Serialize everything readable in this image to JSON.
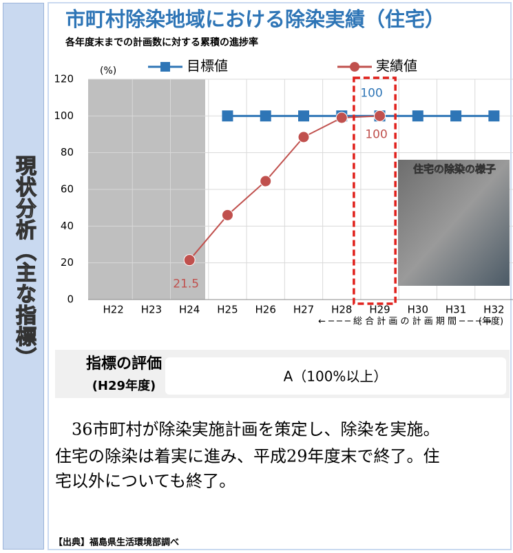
{
  "side_label": "現状分析（主な指標）",
  "chart_data": {
    "type": "line",
    "title": "市町村除染地域における除染実績（住宅）",
    "subtitle": "各年度末までの計画数に対する累積の進捗率",
    "y_label": "(%)",
    "categories": [
      "H22",
      "H23",
      "H24",
      "H25",
      "H26",
      "H27",
      "H28",
      "H29",
      "H30",
      "H31",
      "H32"
    ],
    "series": [
      {
        "name": "目標値",
        "color": "#2e75b6",
        "marker": "square",
        "values": [
          null,
          null,
          null,
          100,
          100,
          100,
          100,
          100,
          100,
          100,
          100
        ],
        "label_indices": [
          7
        ]
      },
      {
        "name": "実績値",
        "color": "#c0504d",
        "marker": "circle",
        "values": [
          null,
          null,
          21.5,
          46,
          64.5,
          88.5,
          99,
          100,
          null,
          null,
          null
        ],
        "label_indices": [
          2,
          7
        ]
      }
    ],
    "ylim": [
      0,
      120
    ],
    "yticks": [
      0,
      20,
      40,
      60,
      80,
      100,
      120
    ],
    "grid": true,
    "period_label": "← ─ ─ ─ 総 合 計 画 の 計 画 期 間 ─ ─ ─ →",
    "x_unit": "(年度)",
    "photo_caption": "住宅の除染の様子"
  },
  "evaluation": {
    "heading": "指標の評価",
    "period": "(H29年度)",
    "result": "A（100%以上）"
  },
  "body": [
    "　36市町村が除染実施計画を策定し、除染を実施。",
    "住宅の除染は着実に進み、平成29年度末で終了。住",
    "宅以外についても終了。"
  ],
  "source": "【出典】福島県生活環境部調べ"
}
